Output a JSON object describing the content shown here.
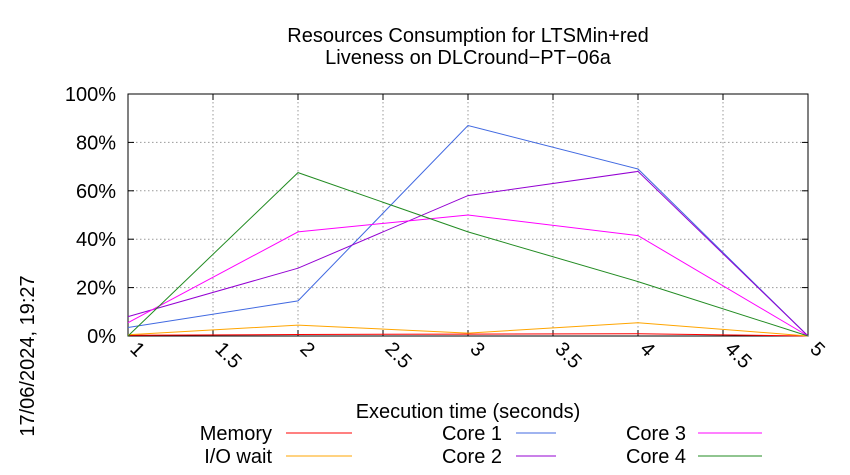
{
  "chart_data": {
    "type": "line",
    "title_line1": "Resources Consumption for LTSMin+red",
    "title_line2": "Liveness on DLCround−PT−06a",
    "xlabel": "Execution time (seconds)",
    "ylabel": "",
    "timestamp": "17/06/2024, 19:27",
    "xlim": [
      1,
      5
    ],
    "ylim": [
      0,
      100
    ],
    "x_ticks": [
      "1",
      "1.5",
      "2",
      "2.5",
      "3",
      "3.5",
      "4",
      "4.5",
      "5"
    ],
    "x_tick_values": [
      1,
      1.5,
      2,
      2.5,
      3,
      3.5,
      4,
      4.5,
      5
    ],
    "y_ticks": [
      "0%",
      "20%",
      "40%",
      "60%",
      "80%",
      "100%"
    ],
    "y_tick_values": [
      0,
      20,
      40,
      60,
      80,
      100
    ],
    "grid": true,
    "legend_position": "bottom",
    "x": [
      1,
      2,
      3,
      4,
      5
    ],
    "series": [
      {
        "name": "Memory",
        "color": "#ff0000",
        "values": [
          0.3,
          0.6,
          0.8,
          0.9,
          0
        ]
      },
      {
        "name": "I/O wait",
        "color": "#ffa500",
        "values": [
          0.5,
          4.5,
          1.2,
          5.5,
          0
        ]
      },
      {
        "name": "Core 1",
        "color": "#4169e1",
        "values": [
          3.5,
          14.5,
          87,
          69,
          0
        ]
      },
      {
        "name": "Core 2",
        "color": "#9400d3",
        "values": [
          8,
          28,
          58,
          68,
          0
        ]
      },
      {
        "name": "Core 3",
        "color": "#ff00ff",
        "values": [
          5.5,
          43,
          50,
          41.5,
          0
        ]
      },
      {
        "name": "Core 4",
        "color": "#228b22",
        "values": [
          0,
          67.5,
          43,
          22.5,
          0
        ]
      }
    ]
  }
}
